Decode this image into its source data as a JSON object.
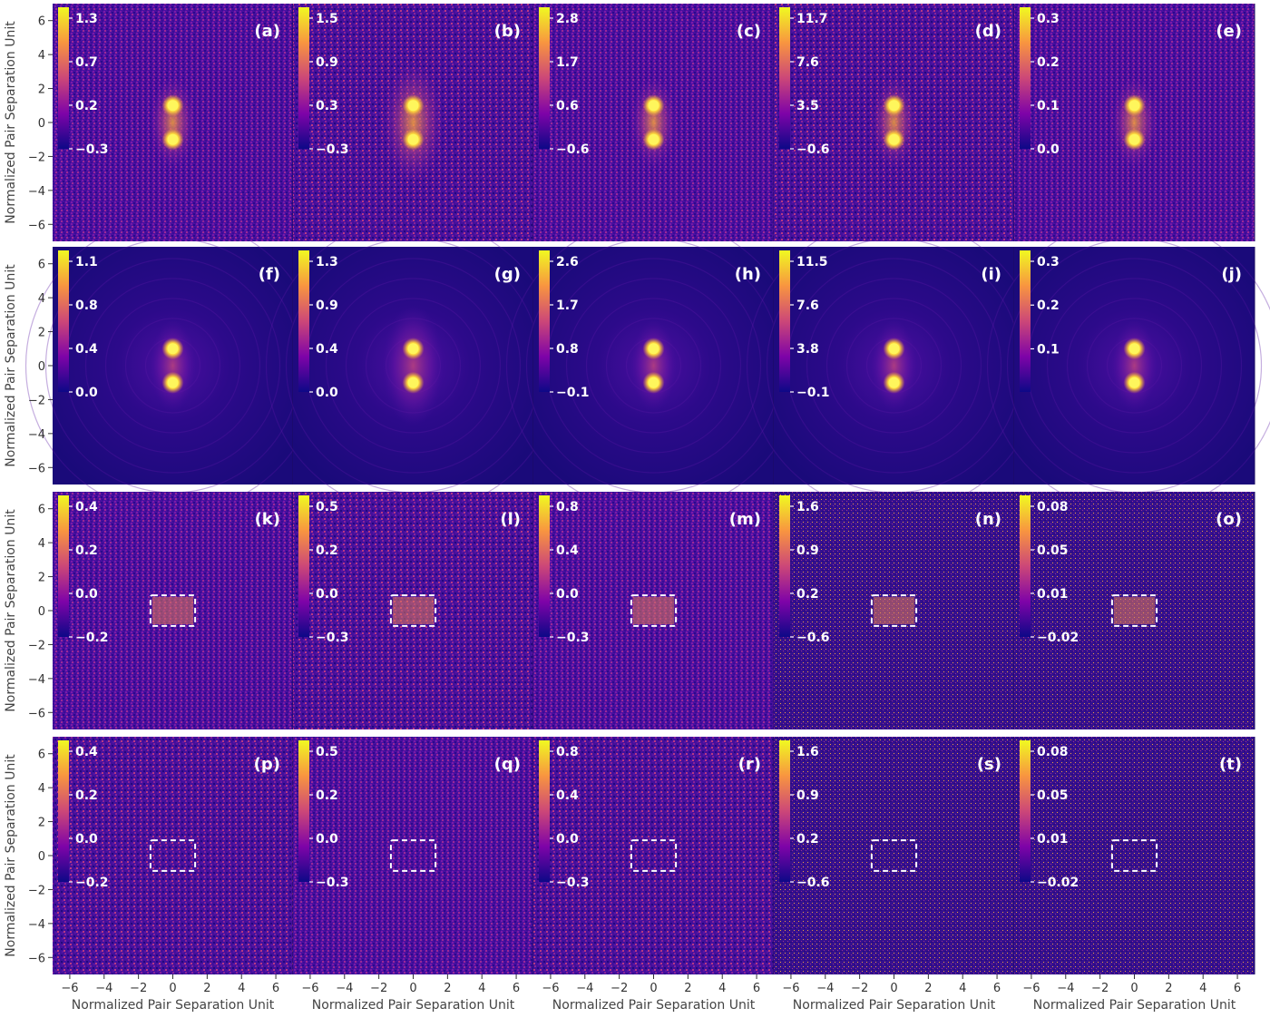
{
  "chart_data": {
    "type": "heatmap",
    "colormap": "plasma",
    "xlabel": "Normalized Pair Separation Unit",
    "ylabel": "Normalized Pair Separation Unit",
    "xlim": [
      -7,
      7
    ],
    "ylim": [
      -7,
      7
    ],
    "xticks": [
      "−6",
      "−4",
      "−2",
      "0",
      "2",
      "4",
      "6"
    ],
    "yticks": [
      "6",
      "4",
      "2",
      "0",
      "−2",
      "−4",
      "−6"
    ],
    "rows": [
      {
        "kind": "noisy-dots",
        "panels": [
          {
            "label": "(a)",
            "colorbar": [
              "1.3",
              "0.7",
              "0.2",
              "−0.3"
            ]
          },
          {
            "label": "(b)",
            "colorbar": [
              "1.5",
              "0.9",
              "0.3",
              "−0.3"
            ]
          },
          {
            "label": "(c)",
            "colorbar": [
              "2.8",
              "1.7",
              "0.6",
              "−0.6"
            ]
          },
          {
            "label": "(d)",
            "colorbar": [
              "11.7",
              "7.6",
              "3.5",
              "−0.6"
            ]
          },
          {
            "label": "(e)",
            "colorbar": [
              "0.3",
              "0.2",
              "0.1",
              "0.0"
            ]
          }
        ]
      },
      {
        "kind": "smooth-dots",
        "panels": [
          {
            "label": "(f)",
            "colorbar": [
              "1.1",
              "0.8",
              "0.4",
              "0.0"
            ]
          },
          {
            "label": "(g)",
            "colorbar": [
              "1.3",
              "0.9",
              "0.4",
              "0.0"
            ]
          },
          {
            "label": "(h)",
            "colorbar": [
              "2.6",
              "1.7",
              "0.8",
              "−0.1"
            ]
          },
          {
            "label": "(i)",
            "colorbar": [
              "11.5",
              "7.6",
              "3.8",
              "−0.1"
            ]
          },
          {
            "label": "(j)",
            "colorbar": [
              "0.3",
              "0.2",
              "0.1"
            ]
          }
        ]
      },
      {
        "kind": "residual-box",
        "panels": [
          {
            "label": "(k)",
            "colorbar": [
              "0.4",
              "0.2",
              "0.0",
              "−0.2"
            ]
          },
          {
            "label": "(l)",
            "colorbar": [
              "0.5",
              "0.2",
              "0.0",
              "−0.3"
            ]
          },
          {
            "label": "(m)",
            "colorbar": [
              "0.8",
              "0.4",
              "0.0",
              "−0.3"
            ]
          },
          {
            "label": "(n)",
            "colorbar": [
              "1.6",
              "0.9",
              "0.2",
              "−0.6"
            ]
          },
          {
            "label": "(o)",
            "colorbar": [
              "0.08",
              "0.05",
              "0.01",
              "−0.02"
            ]
          }
        ]
      },
      {
        "kind": "empty-box",
        "panels": [
          {
            "label": "(p)",
            "colorbar": [
              "0.4",
              "0.2",
              "0.0",
              "−0.2"
            ]
          },
          {
            "label": "(q)",
            "colorbar": [
              "0.5",
              "0.2",
              "0.0",
              "−0.3"
            ]
          },
          {
            "label": "(r)",
            "colorbar": [
              "0.8",
              "0.4",
              "0.0",
              "−0.3"
            ]
          },
          {
            "label": "(s)",
            "colorbar": [
              "1.6",
              "0.9",
              "0.2",
              "−0.6"
            ]
          },
          {
            "label": "(t)",
            "colorbar": [
              "0.08",
              "0.05",
              "0.01",
              "−0.02"
            ]
          }
        ]
      }
    ],
    "peaks": [
      [
        0,
        1
      ],
      [
        0,
        -1
      ]
    ],
    "dashed_box": {
      "x": [
        -1.3,
        1.3
      ],
      "y": [
        -0.9,
        0.9
      ]
    }
  }
}
